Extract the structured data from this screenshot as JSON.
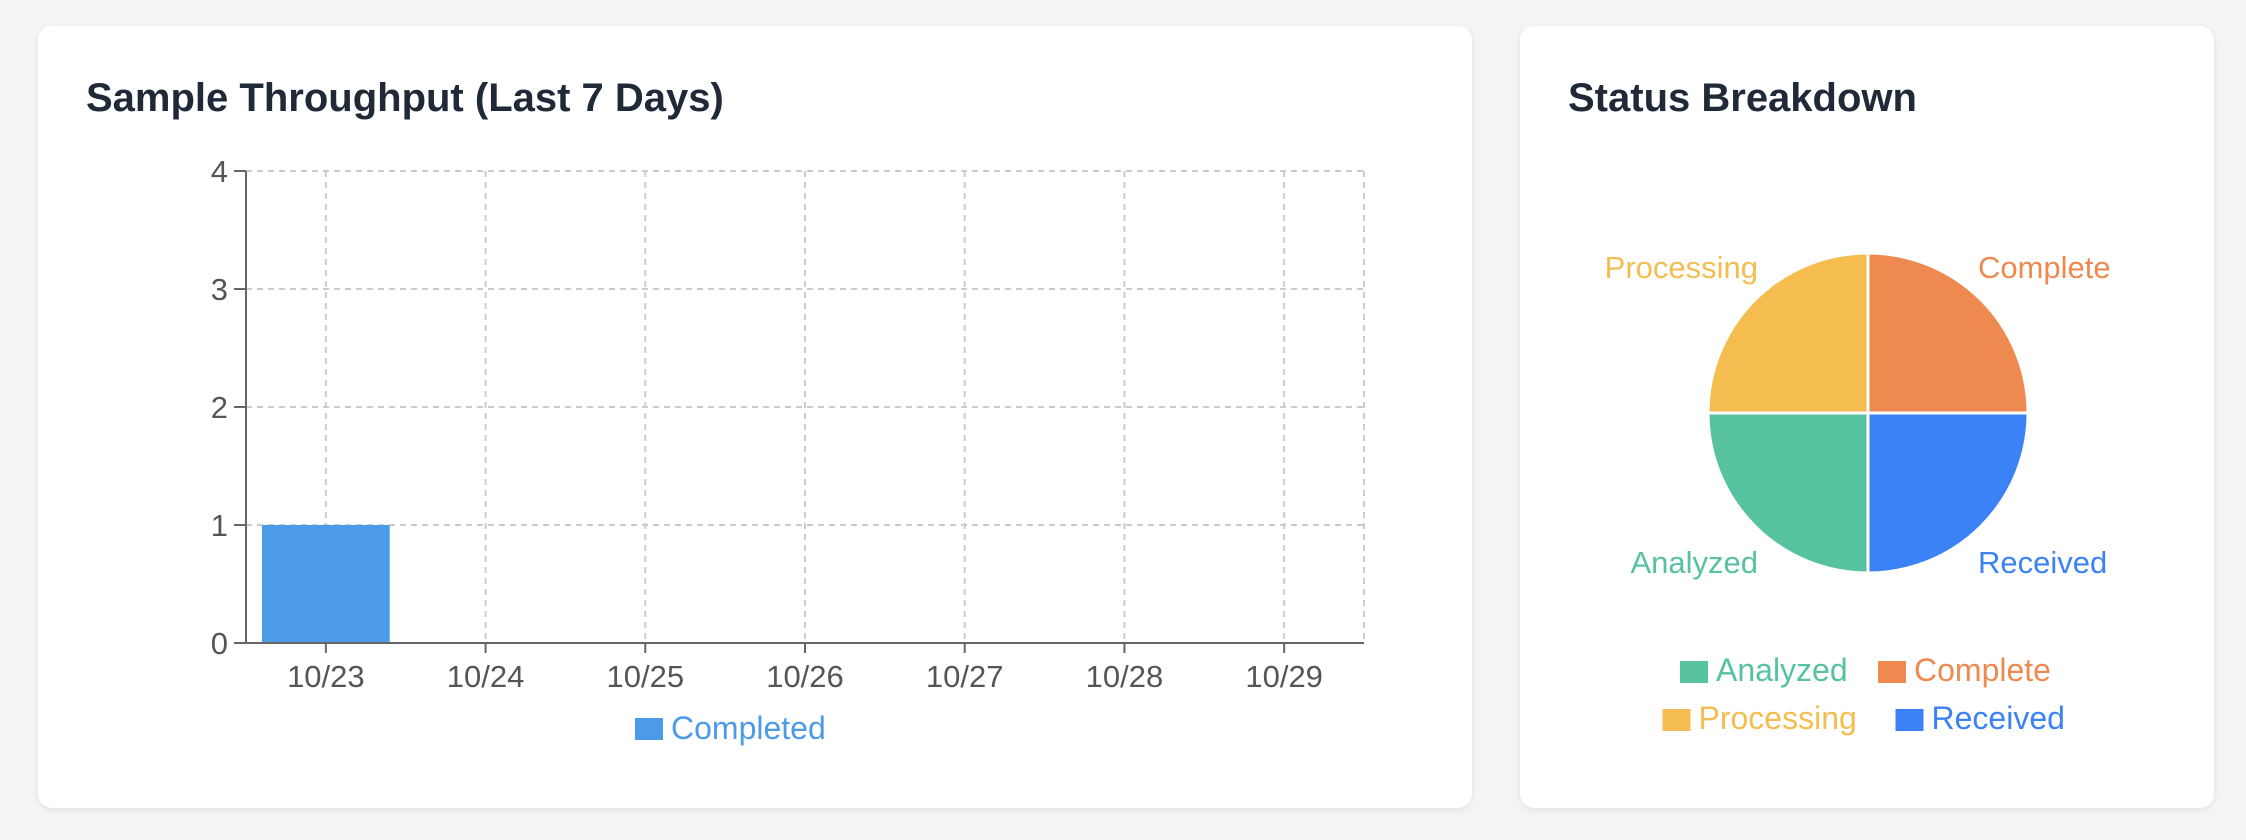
{
  "throughput": {
    "title": "Sample Throughput (Last 7 Days)",
    "chart_data": {
      "type": "bar",
      "categories": [
        "10/23",
        "10/24",
        "10/25",
        "10/26",
        "10/27",
        "10/28",
        "10/29"
      ],
      "series": [
        {
          "name": "Completed",
          "values": [
            1,
            0,
            0,
            0,
            0,
            0,
            0
          ],
          "color": "#4c9be8"
        }
      ],
      "ylim": [
        0,
        4
      ],
      "yticks": [
        0,
        1,
        2,
        3,
        4
      ],
      "grid": true,
      "legend_position": "bottom"
    }
  },
  "status": {
    "title": "Status Breakdown",
    "chart_data": {
      "type": "pie",
      "slices": [
        {
          "label": "Complete",
          "value": 1,
          "color": "#ee8a4f"
        },
        {
          "label": "Received",
          "value": 1,
          "color": "#3b82f6"
        },
        {
          "label": "Analyzed",
          "value": 1,
          "color": "#56c2a0"
        },
        {
          "label": "Processing",
          "value": 1,
          "color": "#f5bd4f"
        }
      ],
      "legend_order": [
        "Analyzed",
        "Complete",
        "Processing",
        "Received"
      ],
      "legend_position": "bottom"
    }
  }
}
